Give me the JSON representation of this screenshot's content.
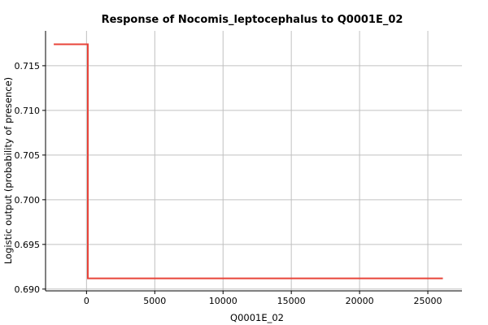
{
  "chart_data": {
    "type": "line",
    "title": "Response of Nocomis_leptocephalus to Q0001E_02",
    "xlabel": "Q0001E_02",
    "ylabel": "Logistic output (probability of presence)",
    "xlim": [
      -3000,
      27500
    ],
    "ylim": [
      0.6898,
      0.7189
    ],
    "x_ticks": [
      0,
      5000,
      10000,
      15000,
      20000,
      25000
    ],
    "x_tick_labels": [
      "0",
      "5000",
      "10000",
      "15000",
      "20000",
      "25000"
    ],
    "y_ticks": [
      0.69,
      0.695,
      0.7,
      0.705,
      0.71,
      0.715
    ],
    "y_tick_labels": [
      "0.690",
      "0.695",
      "0.700",
      "0.705",
      "0.710",
      "0.715"
    ],
    "grid": true,
    "series": [
      {
        "color": "#e8443a",
        "x": [
          -2400,
          100,
          100,
          200,
          26100
        ],
        "y": [
          0.7174,
          0.7174,
          0.6912,
          0.6912,
          0.6912
        ]
      }
    ]
  }
}
